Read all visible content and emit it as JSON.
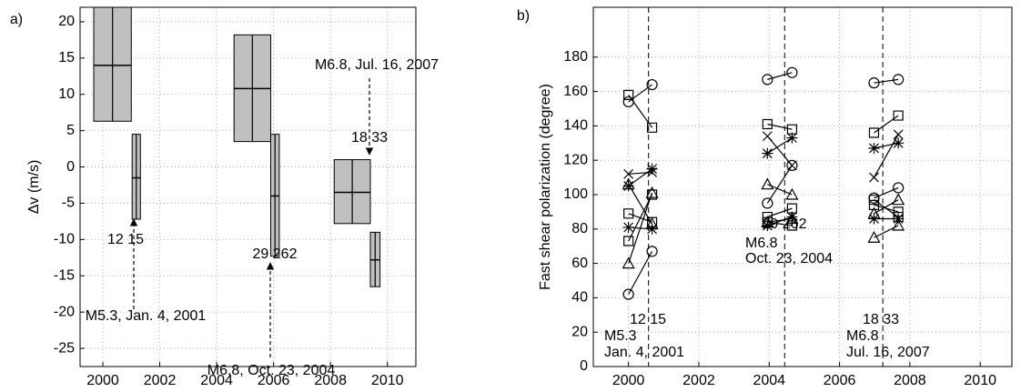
{
  "chart_data": [
    {
      "type": "box",
      "panel_label": "a)",
      "y_label": "Δv (m/s)",
      "xlim": [
        1999.2,
        2011
      ],
      "ylim": [
        -27.5,
        22
      ],
      "xticks": [
        2000,
        2002,
        2004,
        2006,
        2008,
        2010
      ],
      "yticks": [
        -25,
        -20,
        -15,
        -10,
        -5,
        0,
        5,
        10,
        15,
        20
      ],
      "grid": true,
      "color": "#c0c0c0",
      "boxes": [
        {
          "x": [
            1999.68,
            2001.0
          ],
          "low": 6.3,
          "mid": 14,
          "high": 22
        },
        {
          "x": [
            2001.03,
            2001.32
          ],
          "low": -7.2,
          "mid": -1.5,
          "high": 4.5
        },
        {
          "x": [
            2004.61,
            2005.9
          ],
          "low": 3.5,
          "mid": 10.8,
          "high": 18.2
        },
        {
          "x": [
            2005.9,
            2006.2
          ],
          "low": -12.3,
          "mid": -4,
          "high": 4.5
        },
        {
          "x": [
            2008.13,
            2009.4
          ],
          "low": -7.8,
          "mid": -3.5,
          "high": 1
        },
        {
          "x": [
            2009.4,
            2009.74
          ],
          "low": -16.5,
          "mid": -12.8,
          "high": -9
        }
      ],
      "annotations": [
        "12 15",
        "M5.3, Jan. 4, 2001",
        "29 262",
        "M6.8, Oct. 23, 2004",
        "18 33",
        "M6.8, Jul. 16, 2007"
      ]
    },
    {
      "type": "paired-scatter",
      "panel_label": "b)",
      "y_label": "Fast shear polarization (degree)",
      "xlim": [
        1999,
        2010.9
      ],
      "ylim": [
        0,
        209
      ],
      "xticks": [
        2000,
        2002,
        2004,
        2006,
        2008,
        2010
      ],
      "yticks": [
        0,
        20,
        40,
        60,
        80,
        100,
        120,
        140,
        160,
        180
      ],
      "grid": true,
      "x": [
        2000.0,
        2000.67,
        2003.95,
        2004.65,
        2006.98,
        2007.67
      ],
      "vlines": [
        2000.57,
        2004.44,
        2007.23
      ],
      "series": [
        {
          "marker": "circle",
          "values": [
            42,
            67,
            95,
            117,
            98,
            104
          ]
        },
        {
          "marker": "circle",
          "values": [
            154,
            164,
            167,
            171,
            165,
            167
          ]
        },
        {
          "marker": "square",
          "values": [
            158,
            139,
            141,
            138,
            136,
            146
          ]
        },
        {
          "marker": "square",
          "values": [
            89,
            84,
            87,
            92,
            94,
            90
          ]
        },
        {
          "marker": "square",
          "values": [
            73,
            100,
            84,
            82,
            97,
            87
          ]
        },
        {
          "marker": "x",
          "values": [
            112,
            113,
            134,
            117,
            110,
            135
          ]
        },
        {
          "marker": "asterisk",
          "values": [
            105,
            115,
            124,
            133,
            127,
            130
          ]
        },
        {
          "marker": "asterisk",
          "values": [
            81,
            80,
            82,
            87,
            86,
            86
          ]
        },
        {
          "marker": "triangle",
          "values": [
            60,
            101,
            106,
            100,
            89,
            97
          ]
        },
        {
          "marker": "triangle",
          "values": [
            106,
            83,
            84,
            86,
            75,
            82
          ]
        }
      ],
      "annotations": [
        "12 15",
        "M5.3",
        "Jan. 4, 2001",
        "29 262",
        "M6.8",
        "Oct. 23, 2004",
        "18 33",
        "M6.8",
        "Jul. 16, 2007"
      ]
    }
  ]
}
